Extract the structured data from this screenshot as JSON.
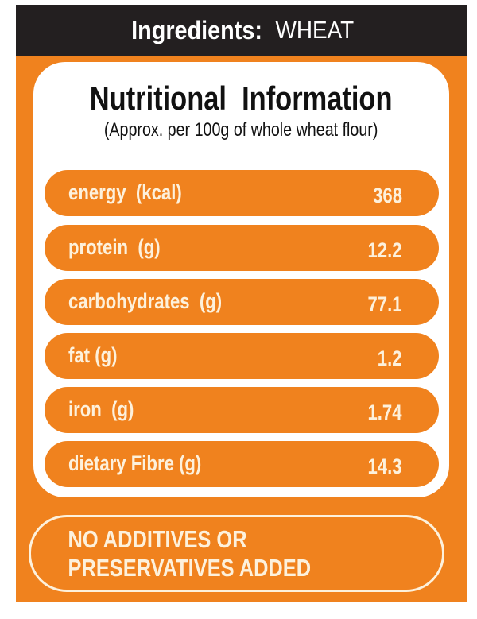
{
  "header": {
    "ingredients_label": "Ingredients",
    "colon": ":",
    "ingredients_value": "WHEAT"
  },
  "card": {
    "title": "Nutritional  Information",
    "subtitle": "(Approx. per 100g of whole wheat flour)",
    "rows": [
      {
        "name": "energy  (kcal)",
        "value": "368"
      },
      {
        "name": "protein  (g)",
        "value": "12.2"
      },
      {
        "name": "carbohydrates  (g)",
        "value": "77.1"
      },
      {
        "name": "fat (g)",
        "value": "1.2"
      },
      {
        "name": "iron  (g)",
        "value": "1.74"
      },
      {
        "name": "dietary Fibre (g)",
        "value": "14.3"
      }
    ]
  },
  "footer": {
    "claim": "NO ADDITIVES OR PRESERVATIVES ADDED"
  },
  "colors": {
    "orange": "#f0821e",
    "header_black": "#231f20",
    "cream_text": "#fdf1dc"
  }
}
